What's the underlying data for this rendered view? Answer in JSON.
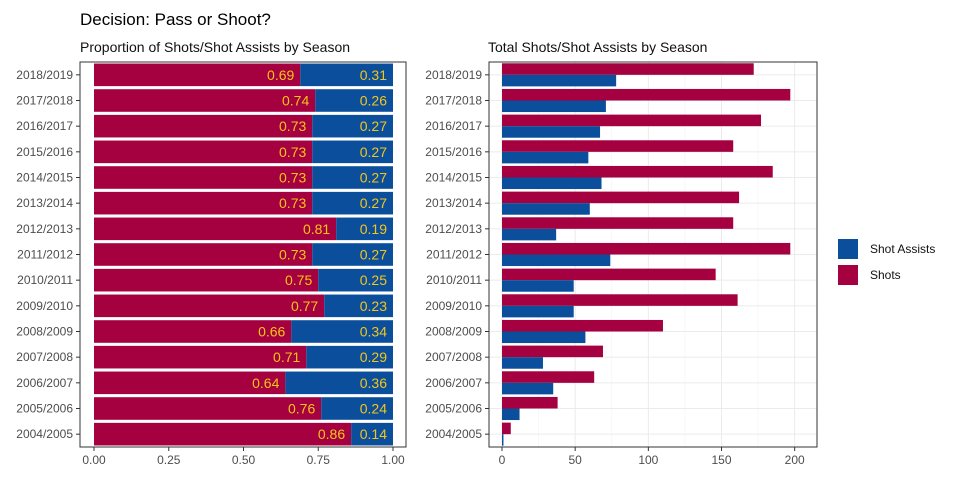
{
  "figure": {
    "title": "Decision: Pass or Shoot?",
    "legend": [
      {
        "label": "Shot Assists",
        "color": "#0b4f9c"
      },
      {
        "label": "Shots",
        "color": "#a5003f"
      }
    ]
  },
  "colors": {
    "shots": "#a5003f",
    "shot_assists": "#0b4f9c",
    "label_text": "#f5c518",
    "grid": "#ebebeb",
    "axis_text": "#4d4d4d"
  },
  "chart_data": [
    {
      "type": "bar",
      "orientation": "horizontal",
      "stacked": true,
      "title": "Proportion of Shots/Shot Assists by Season",
      "categories": [
        "2018/2019",
        "2017/2018",
        "2016/2017",
        "2015/2016",
        "2014/2015",
        "2013/2014",
        "2012/2013",
        "2011/2012",
        "2010/2011",
        "2009/2010",
        "2008/2009",
        "2007/2008",
        "2006/2007",
        "2005/2006",
        "2004/2005"
      ],
      "series": [
        {
          "name": "Shots",
          "values": [
            0.69,
            0.74,
            0.73,
            0.73,
            0.73,
            0.73,
            0.81,
            0.73,
            0.75,
            0.77,
            0.66,
            0.71,
            0.64,
            0.76,
            0.86
          ]
        },
        {
          "name": "Shot Assists",
          "values": [
            0.31,
            0.26,
            0.27,
            0.27,
            0.27,
            0.27,
            0.19,
            0.27,
            0.25,
            0.23,
            0.34,
            0.29,
            0.36,
            0.24,
            0.14
          ]
        }
      ],
      "data_labels": {
        "shots": [
          "0.69",
          "0.74",
          "0.73",
          "0.73",
          "0.73",
          "0.73",
          "0.81",
          "0.73",
          "0.75",
          "0.77",
          "0.66",
          "0.71",
          "0.64",
          "0.76",
          "0.86"
        ],
        "shot_assists": [
          "0.31",
          "0.26",
          "0.27",
          "0.27",
          "0.27",
          "0.27",
          "0.19",
          "0.27",
          "0.25",
          "0.23",
          "0.34",
          "0.29",
          "0.36",
          "0.24",
          "0.14"
        ]
      },
      "xlim": [
        0,
        1
      ],
      "xticks": [
        0,
        0.25,
        0.5,
        0.75,
        1
      ],
      "xtick_labels": [
        "0.00",
        "0.25",
        "0.50",
        "0.75",
        "1.00"
      ],
      "grid": false
    },
    {
      "type": "bar",
      "orientation": "horizontal",
      "stacked": false,
      "title": "Total Shots/Shot Assists by Season",
      "categories": [
        "2018/2019",
        "2017/2018",
        "2016/2017",
        "2015/2016",
        "2014/2015",
        "2013/2014",
        "2012/2013",
        "2011/2012",
        "2010/2011",
        "2009/2010",
        "2008/2009",
        "2007/2008",
        "2006/2007",
        "2005/2006",
        "2004/2005"
      ],
      "series": [
        {
          "name": "Shots",
          "values": [
            172,
            197,
            177,
            158,
            185,
            162,
            158,
            197,
            146,
            161,
            110,
            69,
            63,
            38,
            6
          ]
        },
        {
          "name": "Shot Assists",
          "values": [
            78,
            71,
            67,
            59,
            68,
            60,
            37,
            74,
            49,
            49,
            57,
            28,
            35,
            12,
            1
          ]
        }
      ],
      "xlim": [
        0,
        205
      ],
      "xticks": [
        0,
        50,
        100,
        150,
        200
      ],
      "xtick_labels": [
        "0",
        "50",
        "100",
        "150",
        "200"
      ],
      "grid": true
    }
  ]
}
